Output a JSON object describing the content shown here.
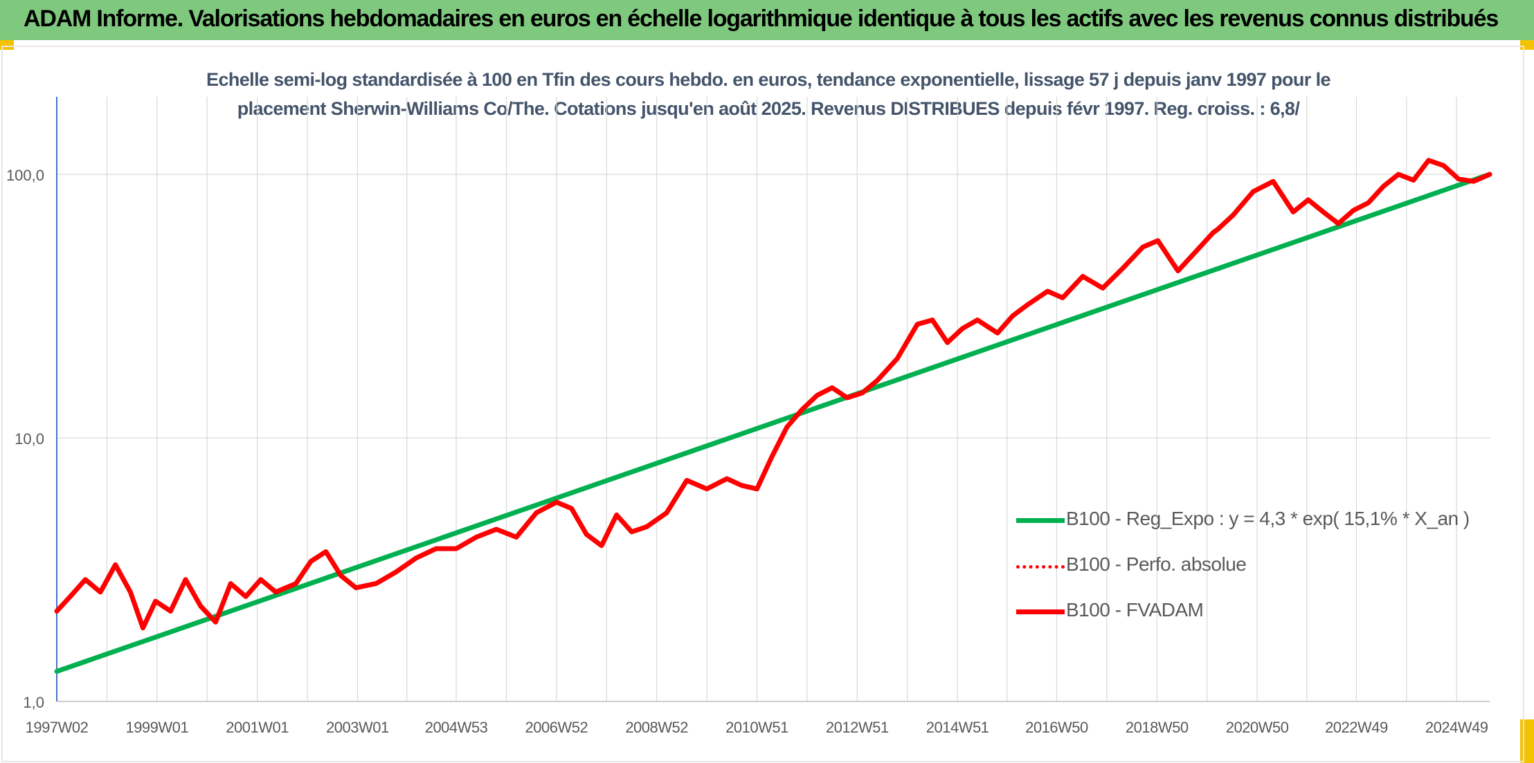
{
  "banner": {
    "title": "ADAM Informe. Valorisations hebdomadaires en euros en échelle logarithmique identique à tous les actifs avec les revenus connus distribués"
  },
  "colors": {
    "banner_bg": "#7fc97f",
    "corner_marks": "#f5c200",
    "trend": "#00b050",
    "fvadam": "#ff0000",
    "perf_absolue": "#ff0000",
    "title_text": "#44546a",
    "grid": "#d9d9d9",
    "y_axis": "#4472c4"
  },
  "chart_data": {
    "type": "line",
    "title_lines": [
      "Echelle semi-log standardisée à 100 en Tfin des cours hebdo. en euros, tendance exponentielle, lissage 57 j depuis janv 1997 pour le",
      "placement Sherwin-Williams Co/The. Cotations jusqu'en août 2025. Revenus DISTRIBUES depuis févr 1997. Reg. croiss. : 6,8/"
    ],
    "y_scale": "log",
    "ylim": [
      1,
      180
    ],
    "xlim": [
      1997.03,
      2025.62
    ],
    "y_ticks": [
      {
        "value": 1,
        "label": "1,0"
      },
      {
        "value": 10,
        "label": "10,0"
      },
      {
        "value": 100,
        "label": "100,0"
      }
    ],
    "x_ticks": [
      {
        "value": 1997.03,
        "label": "1997W02"
      },
      {
        "value": 1999.03,
        "label": "1999W01"
      },
      {
        "value": 2001.03,
        "label": "2001W01"
      },
      {
        "value": 2003.03,
        "label": "2003W01"
      },
      {
        "value": 2005.0,
        "label": "2004W53"
      },
      {
        "value": 2007.0,
        "label": "2006W52"
      },
      {
        "value": 2009.0,
        "label": "2008W52"
      },
      {
        "value": 2011.0,
        "label": "2010W51"
      },
      {
        "value": 2013.0,
        "label": "2012W51"
      },
      {
        "value": 2015.0,
        "label": "2014W51"
      },
      {
        "value": 2016.98,
        "label": "2016W50"
      },
      {
        "value": 2018.98,
        "label": "2018W50"
      },
      {
        "value": 2020.98,
        "label": "2020W50"
      },
      {
        "value": 2022.96,
        "label": "2022W49"
      },
      {
        "value": 2024.96,
        "label": "2024W49"
      }
    ],
    "gridlines": true,
    "legend_position": "bottom-right",
    "series": [
      {
        "name": "B100 - Reg_Expo : y = 4,3 * exp( 15,1% *  X_an )",
        "style": "solid-thick",
        "color": "#00b050",
        "x": [
          1997.03,
          2025.62
        ],
        "y": [
          1.3,
          100.0
        ]
      },
      {
        "name": "B100 - Perfo. absolue",
        "style": "dotted",
        "color": "#ff0000",
        "x": [],
        "y": []
      },
      {
        "name": "B100 - FVADAM",
        "style": "solid-thick",
        "color": "#ff0000",
        "x": [
          1997.03,
          1997.3,
          1997.6,
          1997.9,
          1998.2,
          1998.5,
          1998.75,
          1999.0,
          1999.3,
          1999.6,
          1999.9,
          2000.2,
          2000.5,
          2000.8,
          2001.1,
          2001.4,
          2001.8,
          2002.1,
          2002.4,
          2002.7,
          2003.0,
          2003.4,
          2003.8,
          2004.2,
          2004.6,
          2005.0,
          2005.4,
          2005.8,
          2006.2,
          2006.6,
          2007.0,
          2007.3,
          2007.6,
          2007.9,
          2008.2,
          2008.5,
          2008.8,
          2009.2,
          2009.6,
          2010.0,
          2010.4,
          2010.7,
          2011.0,
          2011.3,
          2011.6,
          2011.9,
          2012.2,
          2012.5,
          2012.8,
          2013.1,
          2013.4,
          2013.8,
          2014.2,
          2014.5,
          2014.8,
          2015.1,
          2015.4,
          2015.8,
          2016.1,
          2016.4,
          2016.8,
          2017.1,
          2017.5,
          2017.9,
          2018.3,
          2018.7,
          2019.0,
          2019.4,
          2019.8,
          2020.1,
          2020.2,
          2020.5,
          2020.9,
          2021.3,
          2021.7,
          2022.0,
          2022.3,
          2022.6,
          2022.9,
          2023.2,
          2023.5,
          2023.8,
          2024.1,
          2024.4,
          2024.7,
          2025.0,
          2025.3,
          2025.62
        ],
        "y": [
          2.2,
          2.5,
          2.9,
          2.6,
          3.3,
          2.6,
          1.9,
          2.4,
          2.2,
          2.9,
          2.3,
          2.0,
          2.8,
          2.5,
          2.9,
          2.6,
          2.8,
          3.4,
          3.7,
          3.0,
          2.7,
          2.8,
          3.1,
          3.5,
          3.8,
          3.8,
          4.2,
          4.5,
          4.2,
          5.2,
          5.7,
          5.4,
          4.3,
          3.9,
          5.1,
          4.4,
          4.6,
          5.2,
          6.9,
          6.4,
          7.0,
          6.6,
          6.4,
          8.5,
          11.0,
          12.8,
          14.5,
          15.5,
          14.2,
          14.8,
          16.5,
          20.0,
          27.0,
          28.0,
          23.0,
          26.0,
          28.0,
          25.0,
          29.0,
          32.0,
          36.0,
          34.0,
          41.0,
          37.0,
          44.0,
          53.0,
          56.0,
          43.0,
          52.0,
          60.0,
          62.0,
          70.0,
          86.0,
          94.0,
          72.0,
          80.0,
          72.0,
          65.0,
          73.0,
          78.0,
          90.0,
          100.0,
          95.0,
          113.0,
          108.0,
          96.0,
          94.0,
          100.0
        ]
      }
    ]
  }
}
